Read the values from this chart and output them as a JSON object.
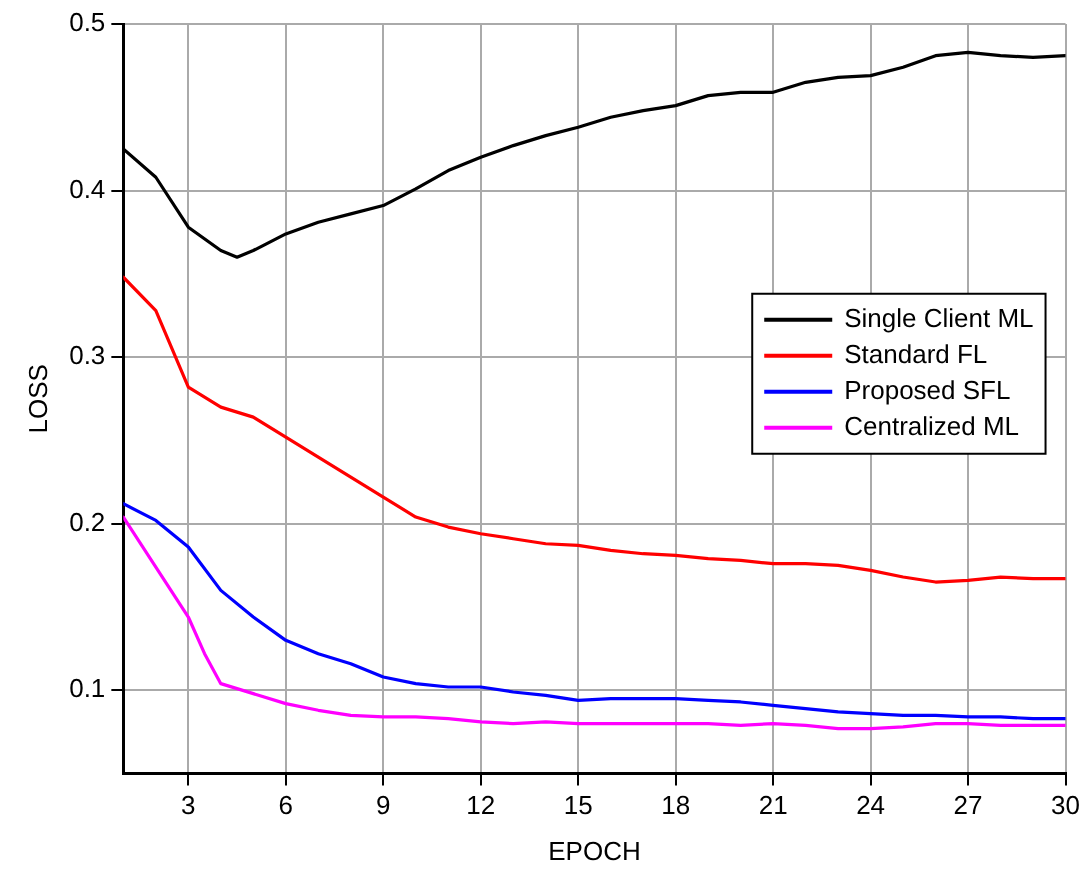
{
  "chart_data": {
    "type": "line",
    "xlabel": "EPOCH",
    "ylabel": "LOSS",
    "x": [
      1,
      2,
      3,
      4,
      5,
      6,
      7,
      8,
      9,
      10,
      11,
      12,
      13,
      14,
      15,
      16,
      17,
      18,
      19,
      20,
      21,
      22,
      23,
      24,
      25,
      26,
      27,
      28,
      29,
      30
    ],
    "series": [
      {
        "name": "Single Client ML",
        "color": "#000000",
        "x": [
          1,
          2,
          3,
          4,
          4.5,
          5,
          6,
          7,
          8,
          9,
          10,
          11,
          12,
          13,
          14,
          15,
          16,
          17,
          18,
          19,
          20,
          21,
          22,
          23,
          24,
          25,
          26,
          27,
          28,
          29,
          30
        ],
        "values": [
          0.425,
          0.408,
          0.378,
          0.364,
          0.36,
          0.364,
          0.374,
          0.381,
          0.386,
          0.391,
          0.401,
          0.412,
          0.42,
          0.427,
          0.433,
          0.438,
          0.444,
          0.448,
          0.451,
          0.457,
          0.459,
          0.459,
          0.465,
          0.468,
          0.469,
          0.474,
          0.481,
          0.483,
          0.481,
          0.48,
          0.481
        ]
      },
      {
        "name": "Standard FL",
        "color": "#ff0000",
        "values": [
          0.348,
          0.328,
          0.282,
          0.27,
          0.264,
          0.252,
          0.24,
          0.228,
          0.216,
          0.204,
          0.198,
          0.194,
          0.191,
          0.188,
          0.187,
          0.184,
          0.182,
          0.181,
          0.179,
          0.178,
          0.176,
          0.176,
          0.175,
          0.172,
          0.168,
          0.165,
          0.166,
          0.168,
          0.167,
          0.167
        ]
      },
      {
        "name": "Proposed SFL",
        "color": "#0000ff",
        "values": [
          0.212,
          0.202,
          0.186,
          0.16,
          0.144,
          0.13,
          0.122,
          0.116,
          0.108,
          0.104,
          0.102,
          0.102,
          0.099,
          0.097,
          0.094,
          0.095,
          0.095,
          0.095,
          0.094,
          0.093,
          0.091,
          0.089,
          0.087,
          0.086,
          0.085,
          0.085,
          0.084,
          0.084,
          0.083,
          0.083
        ]
      },
      {
        "name": "Centralized ML",
        "color": "#ff00ff",
        "x": [
          1,
          2,
          3,
          3.5,
          4,
          5,
          6,
          7,
          8,
          9,
          10,
          11,
          12,
          13,
          14,
          15,
          16,
          17,
          18,
          19,
          20,
          21,
          22,
          23,
          24,
          25,
          26,
          27,
          28,
          29,
          30
        ],
        "values": [
          0.204,
          0.174,
          0.144,
          0.122,
          0.104,
          0.098,
          0.092,
          0.088,
          0.085,
          0.084,
          0.084,
          0.083,
          0.081,
          0.08,
          0.081,
          0.08,
          0.08,
          0.08,
          0.08,
          0.08,
          0.079,
          0.08,
          0.079,
          0.077,
          0.077,
          0.078,
          0.08,
          0.08,
          0.079,
          0.079,
          0.079
        ]
      }
    ],
    "xlim": [
      1,
      30
    ],
    "xticks": [
      3,
      6,
      9,
      12,
      15,
      18,
      21,
      24,
      27,
      30
    ],
    "ylim": [
      0.05,
      0.5
    ],
    "yticks": [
      0.1,
      0.2,
      0.3,
      0.4,
      0.5
    ],
    "grid": true,
    "legend": "right",
    "marker": "none",
    "line_style": "solid"
  }
}
